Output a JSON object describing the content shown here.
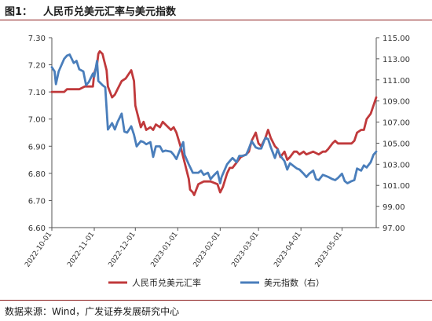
{
  "header": {
    "label": "图1：",
    "text": "人民币兑美元汇率与美元指数"
  },
  "footer": {
    "source": "数据来源：Wind，广发证券发展研究中心"
  },
  "colors": {
    "cny": "#c0393b",
    "dxy": "#4a7ebb"
  },
  "chart_data": {
    "type": "line",
    "x_ticks": [
      "2022-10-01",
      "2022-11-01",
      "2022-12-01",
      "2023-01-01",
      "2023-02-01",
      "2023-03-01",
      "2023-04-01",
      "2023-05-01"
    ],
    "x_range": [
      "2022-10-01",
      "2023-05-26"
    ],
    "y_left": {
      "ticks": [
        "7.30",
        "7.20",
        "7.10",
        "7.00",
        "6.90",
        "6.80",
        "6.70",
        "6.60"
      ],
      "range": [
        6.6,
        7.3
      ]
    },
    "y_right": {
      "ticks": [
        "115.00",
        "113.00",
        "111.00",
        "109.00",
        "107.00",
        "105.00",
        "103.00",
        "101.00",
        "99.00",
        "97.00"
      ],
      "range": [
        97,
        115
      ]
    },
    "legend_position": "bottom",
    "series": [
      {
        "name": "人民币兑美元汇率",
        "axis": "left",
        "color": "#c0393b",
        "points": [
          [
            "2022-10-01",
            7.1
          ],
          [
            "2022-10-10",
            7.1
          ],
          [
            "2022-10-12",
            7.11
          ],
          [
            "2022-10-17",
            7.11
          ],
          [
            "2022-10-21",
            7.11
          ],
          [
            "2022-10-25",
            7.12
          ],
          [
            "2022-10-31",
            7.12
          ],
          [
            "2022-11-01",
            7.17
          ],
          [
            "2022-11-03",
            7.2
          ],
          [
            "2022-11-04",
            7.24
          ],
          [
            "2022-11-05",
            7.25
          ],
          [
            "2022-11-07",
            7.24
          ],
          [
            "2022-11-08",
            7.22
          ],
          [
            "2022-11-10",
            7.18
          ],
          [
            "2022-11-11",
            7.12
          ],
          [
            "2022-11-14",
            7.08
          ],
          [
            "2022-11-16",
            7.09
          ],
          [
            "2022-11-18",
            7.11
          ],
          [
            "2022-11-21",
            7.14
          ],
          [
            "2022-11-24",
            7.15
          ],
          [
            "2022-11-28",
            7.18
          ],
          [
            "2022-11-30",
            7.14
          ],
          [
            "2022-12-01",
            7.05
          ],
          [
            "2022-12-02",
            7.03
          ],
          [
            "2022-12-05",
            6.97
          ],
          [
            "2022-12-07",
            6.99
          ],
          [
            "2022-12-09",
            6.96
          ],
          [
            "2022-12-12",
            6.97
          ],
          [
            "2022-12-14",
            6.96
          ],
          [
            "2022-12-16",
            6.98
          ],
          [
            "2022-12-19",
            6.97
          ],
          [
            "2022-12-21",
            6.99
          ],
          [
            "2022-12-23",
            6.98
          ],
          [
            "2022-12-27",
            6.96
          ],
          [
            "2022-12-29",
            6.97
          ],
          [
            "2022-12-31",
            6.95
          ],
          [
            "2023-01-03",
            6.9
          ],
          [
            "2023-01-05",
            6.86
          ],
          [
            "2023-01-09",
            6.78
          ],
          [
            "2023-01-10",
            6.74
          ],
          [
            "2023-01-12",
            6.73
          ],
          [
            "2023-01-13",
            6.72
          ],
          [
            "2023-01-16",
            6.76
          ],
          [
            "2023-01-20",
            6.77
          ],
          [
            "2023-01-25",
            6.77
          ],
          [
            "2023-01-30",
            6.76
          ],
          [
            "2023-02-01",
            6.73
          ],
          [
            "2023-02-03",
            6.75
          ],
          [
            "2023-02-06",
            6.8
          ],
          [
            "2023-02-08",
            6.82
          ],
          [
            "2023-02-10",
            6.82
          ],
          [
            "2023-02-13",
            6.84
          ],
          [
            "2023-02-16",
            6.86
          ],
          [
            "2023-02-20",
            6.87
          ],
          [
            "2023-02-22",
            6.88
          ],
          [
            "2023-02-24",
            6.92
          ],
          [
            "2023-02-27",
            6.95
          ],
          [
            "2023-03-01",
            6.91
          ],
          [
            "2023-03-03",
            6.9
          ],
          [
            "2023-03-06",
            6.93
          ],
          [
            "2023-03-08",
            6.96
          ],
          [
            "2023-03-10",
            6.93
          ],
          [
            "2023-03-13",
            6.9
          ],
          [
            "2023-03-15",
            6.89
          ],
          [
            "2023-03-17",
            6.86
          ],
          [
            "2023-03-20",
            6.88
          ],
          [
            "2023-03-22",
            6.85
          ],
          [
            "2023-03-24",
            6.86
          ],
          [
            "2023-03-27",
            6.88
          ],
          [
            "2023-03-29",
            6.88
          ],
          [
            "2023-03-31",
            6.87
          ],
          [
            "2023-04-03",
            6.88
          ],
          [
            "2023-04-05",
            6.87
          ],
          [
            "2023-04-10",
            6.88
          ],
          [
            "2023-04-14",
            6.87
          ],
          [
            "2023-04-17",
            6.88
          ],
          [
            "2023-04-19",
            6.88
          ],
          [
            "2023-04-21",
            6.89
          ],
          [
            "2023-04-24",
            6.91
          ],
          [
            "2023-04-26",
            6.92
          ],
          [
            "2023-04-28",
            6.91
          ],
          [
            "2023-05-01",
            6.91
          ],
          [
            "2023-05-04",
            6.91
          ],
          [
            "2023-05-08",
            6.91
          ],
          [
            "2023-05-10",
            6.92
          ],
          [
            "2023-05-12",
            6.95
          ],
          [
            "2023-05-15",
            6.96
          ],
          [
            "2023-05-17",
            6.96
          ],
          [
            "2023-05-19",
            7.0
          ],
          [
            "2023-05-22",
            7.02
          ],
          [
            "2023-05-24",
            7.05
          ],
          [
            "2023-05-26",
            7.08
          ]
        ]
      },
      {
        "name": "美元指数（右）",
        "axis": "right",
        "color": "#4a7ebb",
        "points": [
          [
            "2022-10-01",
            112.2
          ],
          [
            "2022-10-03",
            111.8
          ],
          [
            "2022-10-04",
            110.6
          ],
          [
            "2022-10-06",
            111.8
          ],
          [
            "2022-10-10",
            113.0
          ],
          [
            "2022-10-12",
            113.3
          ],
          [
            "2022-10-14",
            113.4
          ],
          [
            "2022-10-17",
            112.6
          ],
          [
            "2022-10-19",
            112.8
          ],
          [
            "2022-10-21",
            112.0
          ],
          [
            "2022-10-24",
            111.8
          ],
          [
            "2022-10-26",
            110.5
          ],
          [
            "2022-10-28",
            110.8
          ],
          [
            "2022-10-31",
            111.6
          ],
          [
            "2022-11-01",
            111.3
          ],
          [
            "2022-11-03",
            112.8
          ],
          [
            "2022-11-04",
            110.9
          ],
          [
            "2022-11-07",
            110.5
          ],
          [
            "2022-11-09",
            110.3
          ],
          [
            "2022-11-10",
            108.3
          ],
          [
            "2022-11-11",
            106.3
          ],
          [
            "2022-11-14",
            106.9
          ],
          [
            "2022-11-16",
            106.3
          ],
          [
            "2022-11-18",
            107.0
          ],
          [
            "2022-11-21",
            107.8
          ],
          [
            "2022-11-23",
            106.1
          ],
          [
            "2022-11-25",
            106.0
          ],
          [
            "2022-11-28",
            106.6
          ],
          [
            "2022-11-30",
            105.8
          ],
          [
            "2022-12-02",
            104.7
          ],
          [
            "2022-12-05",
            105.2
          ],
          [
            "2022-12-07",
            105.1
          ],
          [
            "2022-12-09",
            104.9
          ],
          [
            "2022-12-12",
            105.1
          ],
          [
            "2022-12-14",
            103.7
          ],
          [
            "2022-12-16",
            104.7
          ],
          [
            "2022-12-19",
            104.7
          ],
          [
            "2022-12-21",
            104.2
          ],
          [
            "2022-12-23",
            104.3
          ],
          [
            "2022-12-27",
            104.2
          ],
          [
            "2022-12-29",
            103.9
          ],
          [
            "2022-12-31",
            103.5
          ],
          [
            "2023-01-03",
            104.5
          ],
          [
            "2023-01-05",
            105.1
          ],
          [
            "2023-01-06",
            103.9
          ],
          [
            "2023-01-09",
            103.0
          ],
          [
            "2023-01-12",
            102.2
          ],
          [
            "2023-01-16",
            102.2
          ],
          [
            "2023-01-18",
            102.4
          ],
          [
            "2023-01-20",
            102.0
          ],
          [
            "2023-01-23",
            102.2
          ],
          [
            "2023-01-25",
            101.6
          ],
          [
            "2023-01-27",
            101.9
          ],
          [
            "2023-01-30",
            102.3
          ],
          [
            "2023-02-01",
            101.2
          ],
          [
            "2023-02-02",
            101.8
          ],
          [
            "2023-02-06",
            103.0
          ],
          [
            "2023-02-08",
            103.3
          ],
          [
            "2023-02-10",
            103.6
          ],
          [
            "2023-02-13",
            103.2
          ],
          [
            "2023-02-15",
            103.8
          ],
          [
            "2023-02-17",
            103.8
          ],
          [
            "2023-02-20",
            103.9
          ],
          [
            "2023-02-22",
            104.5
          ],
          [
            "2023-02-24",
            105.2
          ],
          [
            "2023-02-27",
            104.6
          ],
          [
            "2023-03-01",
            104.5
          ],
          [
            "2023-03-03",
            104.5
          ],
          [
            "2023-03-06",
            105.5
          ],
          [
            "2023-03-08",
            105.4
          ],
          [
            "2023-03-10",
            104.6
          ],
          [
            "2023-03-13",
            103.6
          ],
          [
            "2023-03-15",
            104.4
          ],
          [
            "2023-03-17",
            103.8
          ],
          [
            "2023-03-20",
            103.3
          ],
          [
            "2023-03-22",
            102.5
          ],
          [
            "2023-03-24",
            103.1
          ],
          [
            "2023-03-27",
            102.8
          ],
          [
            "2023-03-29",
            102.6
          ],
          [
            "2023-03-31",
            102.5
          ],
          [
            "2023-04-03",
            102.1
          ],
          [
            "2023-04-05",
            101.8
          ],
          [
            "2023-04-07",
            102.1
          ],
          [
            "2023-04-10",
            102.4
          ],
          [
            "2023-04-12",
            101.6
          ],
          [
            "2023-04-14",
            101.5
          ],
          [
            "2023-04-17",
            102.0
          ],
          [
            "2023-04-19",
            101.9
          ],
          [
            "2023-04-21",
            101.8
          ],
          [
            "2023-04-24",
            101.6
          ],
          [
            "2023-04-26",
            101.5
          ],
          [
            "2023-04-28",
            101.7
          ],
          [
            "2023-05-01",
            102.1
          ],
          [
            "2023-05-03",
            101.4
          ],
          [
            "2023-05-05",
            101.2
          ],
          [
            "2023-05-08",
            101.4
          ],
          [
            "2023-05-10",
            101.5
          ],
          [
            "2023-05-12",
            102.6
          ],
          [
            "2023-05-15",
            102.4
          ],
          [
            "2023-05-17",
            102.9
          ],
          [
            "2023-05-19",
            102.7
          ],
          [
            "2023-05-22",
            103.2
          ],
          [
            "2023-05-24",
            103.9
          ],
          [
            "2023-05-26",
            104.2
          ]
        ]
      }
    ]
  }
}
